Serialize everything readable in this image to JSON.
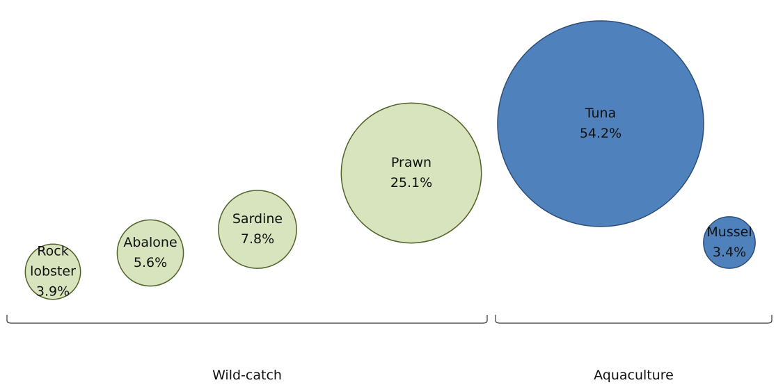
{
  "chart_data": {
    "type": "bubble",
    "title": "",
    "colors": {
      "Wild-catch": {
        "fill": "#d7e4bd",
        "stroke": "#4f6228"
      },
      "Aquaculture": {
        "fill": "#4f81bd",
        "stroke": "#2c4d75"
      }
    },
    "groups": [
      {
        "name": "Wild-catch",
        "items": [
          {
            "label": [
              "Rock",
              "lobster"
            ],
            "value": 3.9,
            "value_text": "3.9%"
          },
          {
            "label": [
              "Abalone"
            ],
            "value": 5.6,
            "value_text": "5.6%"
          },
          {
            "label": [
              "Sardine"
            ],
            "value": 7.8,
            "value_text": "7.8%"
          },
          {
            "label": [
              "Prawn"
            ],
            "value": 25.1,
            "value_text": "25.1%"
          }
        ]
      },
      {
        "name": "Aquaculture",
        "items": [
          {
            "label": [
              "Tuna"
            ],
            "value": 54.2,
            "value_text": "54.2%"
          },
          {
            "label": [
              "Mussel"
            ],
            "value": 3.4,
            "value_text": "3.4%"
          }
        ]
      }
    ]
  }
}
